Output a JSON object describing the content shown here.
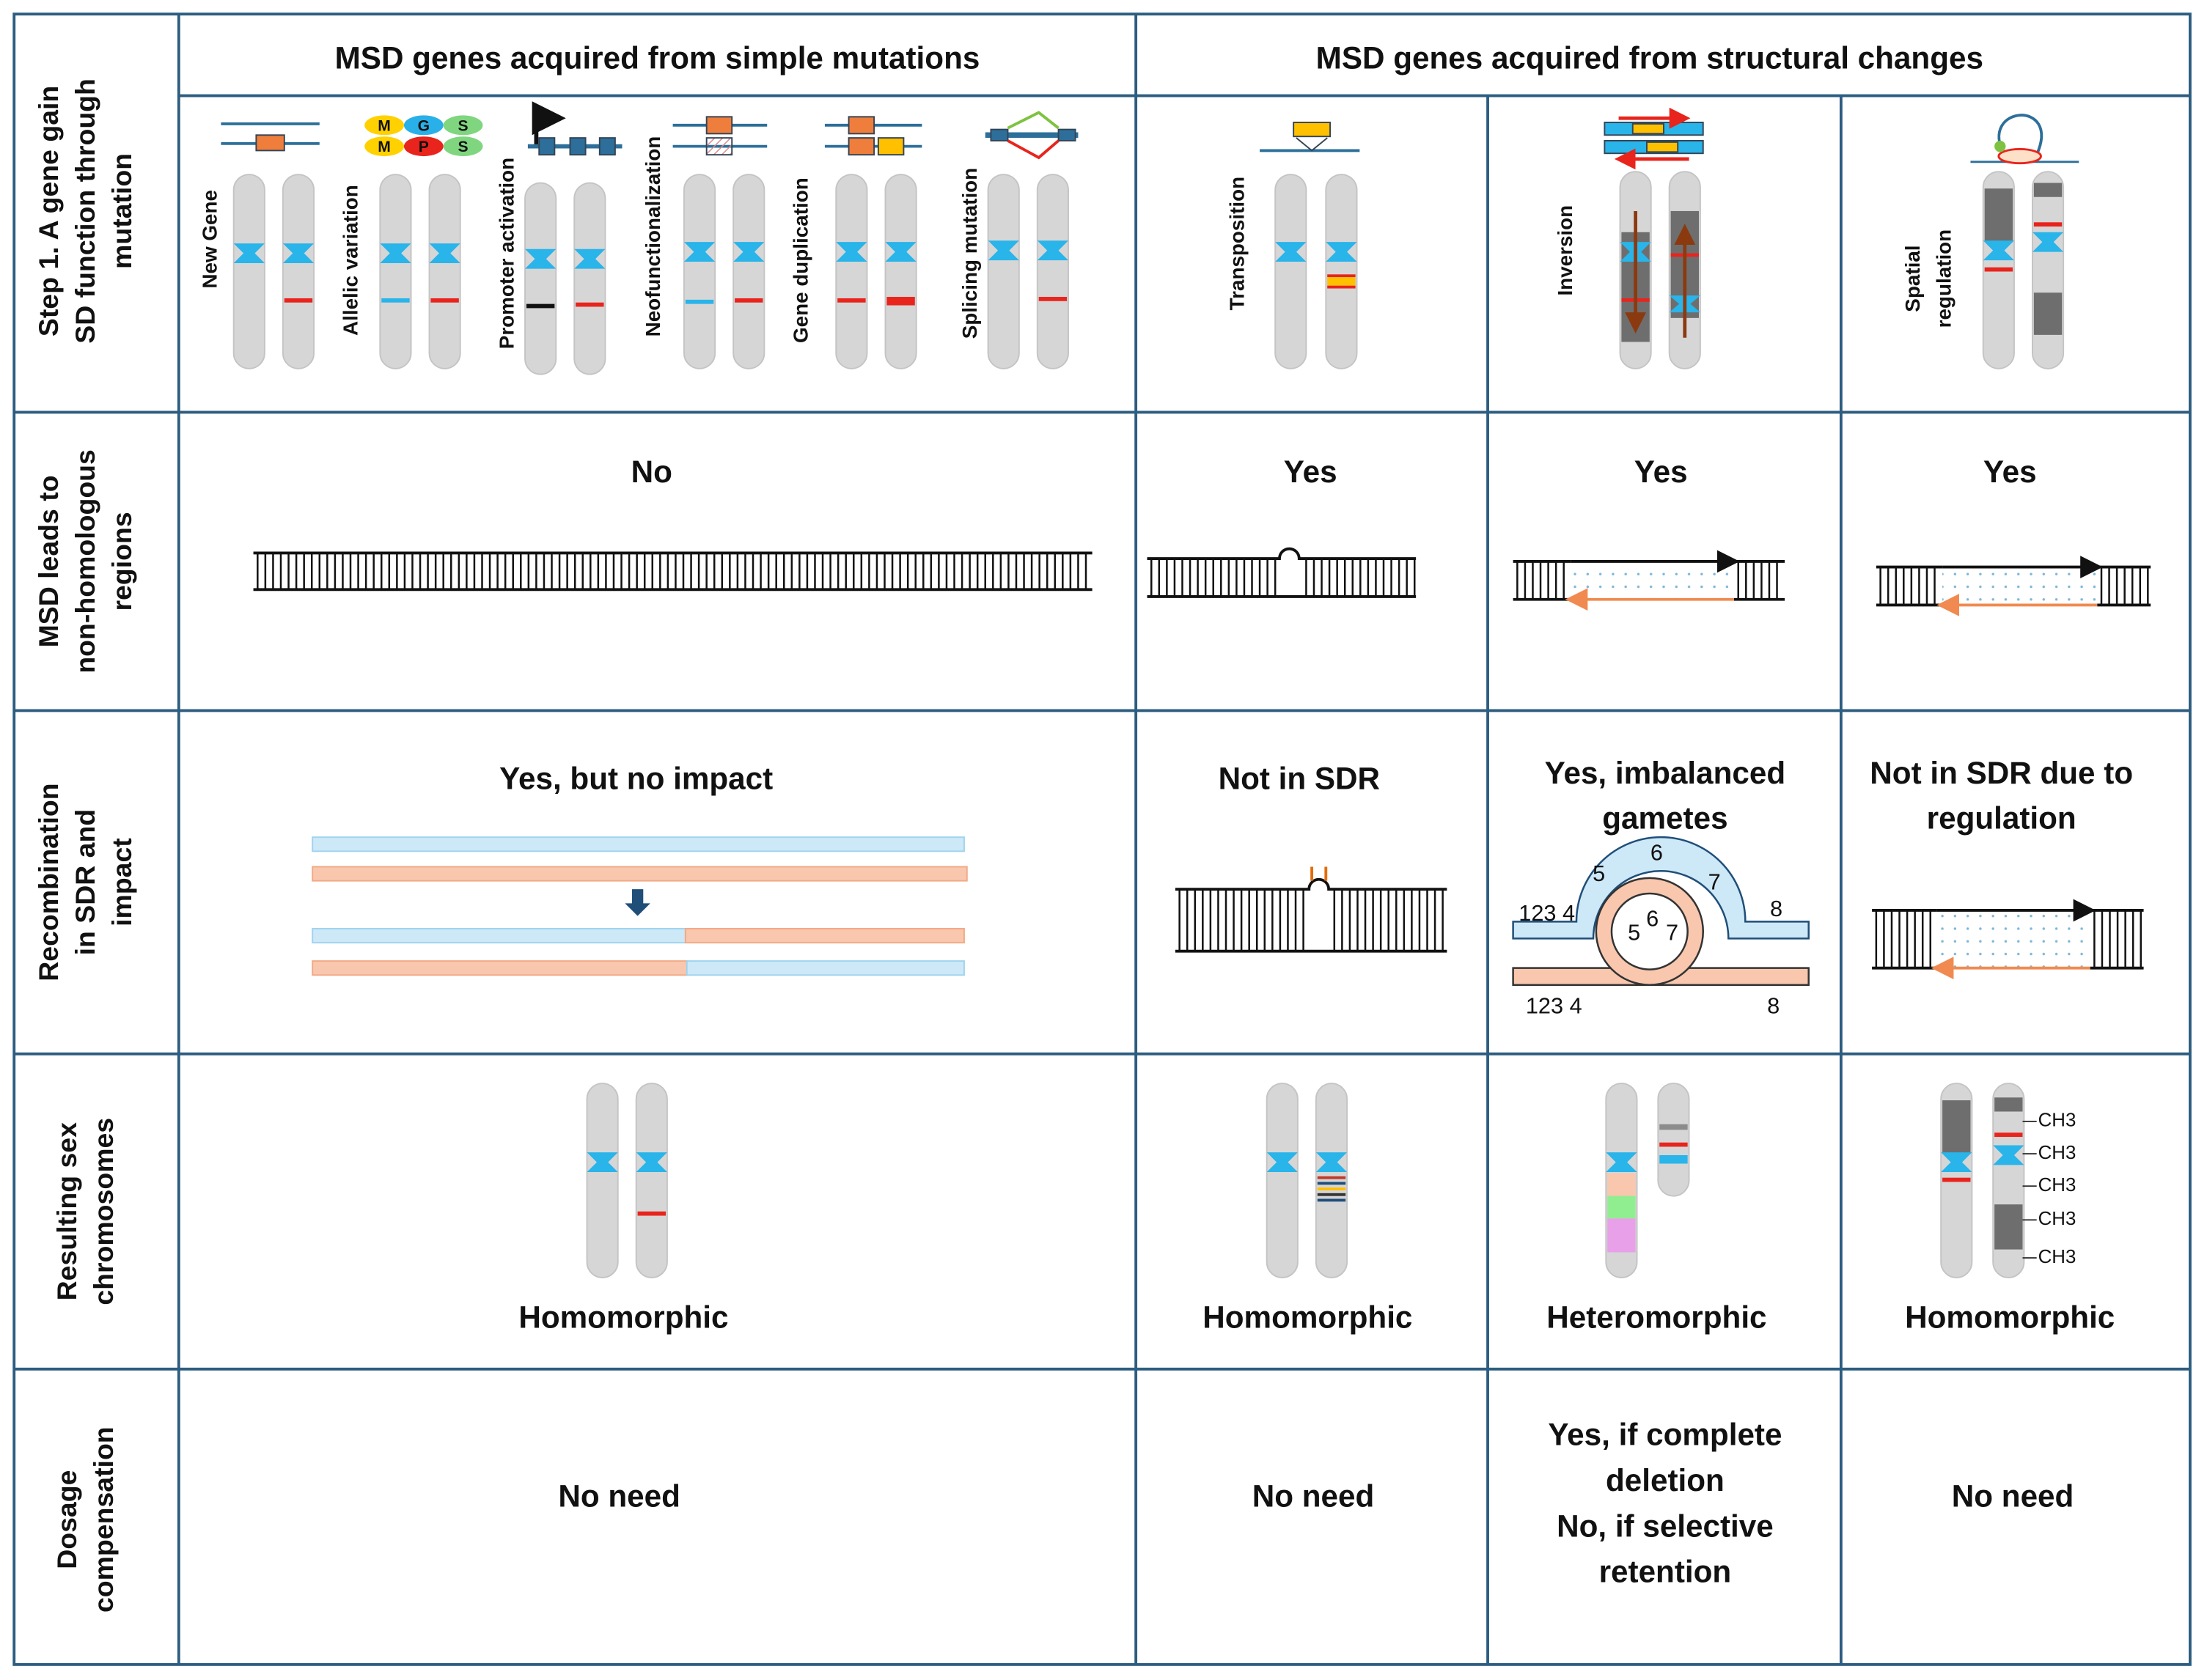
{
  "header": {
    "columns": [
      "MSD genes acquired from simple mutations",
      "MSD genes acquired from structural changes"
    ]
  },
  "row_labels": [
    [
      "Step 1.  A gene gain",
      "SD function through",
      "mutation"
    ],
    [
      "MSD leads to",
      "non-homologous",
      "regions"
    ],
    [
      "Recombination",
      "in SDR and",
      "impact"
    ],
    [
      "Resulting sex",
      "chromosomes"
    ],
    [
      "Dosage",
      "compensation"
    ]
  ],
  "step1": {
    "simple": [
      [
        "New Gene"
      ],
      [
        "Allelic variation"
      ],
      [
        "Promoter activation"
      ],
      [
        "Neofunctionalization"
      ],
      [
        "Gene duplication"
      ],
      [
        "Splicing mutation"
      ]
    ],
    "structural": [
      [
        "Transposition"
      ],
      [
        "Inversion"
      ],
      [
        "Spatial",
        "regulation"
      ]
    ],
    "allelic_letters": [
      "M",
      "G",
      "S",
      "M",
      "P",
      "S"
    ]
  },
  "non_homologous": [
    "No",
    "Yes",
    "Yes",
    "Yes"
  ],
  "recombination": {
    "labels": [
      [
        "Yes, but no impact"
      ],
      [
        "Not in SDR"
      ],
      [
        "Yes, imbalanced",
        "gametes"
      ],
      [
        "Not in SDR due to",
        "regulation"
      ]
    ],
    "inversion_numbers": [
      "5",
      "6",
      "7",
      "123 4",
      "8",
      "5",
      "6",
      "7",
      "123 4",
      "8"
    ]
  },
  "resulting": {
    "labels": [
      "Homomorphic",
      "Homomorphic",
      "Heteromorphic",
      "Homomorphic"
    ],
    "ch3_labels": [
      "CH3",
      "CH3",
      "CH3",
      "CH3",
      "CH3"
    ]
  },
  "dosage": [
    [
      "No need"
    ],
    [
      "No need"
    ],
    [
      "Yes, if complete",
      "deletion",
      "No, if selective",
      "retention"
    ],
    [
      "No need"
    ]
  ]
}
